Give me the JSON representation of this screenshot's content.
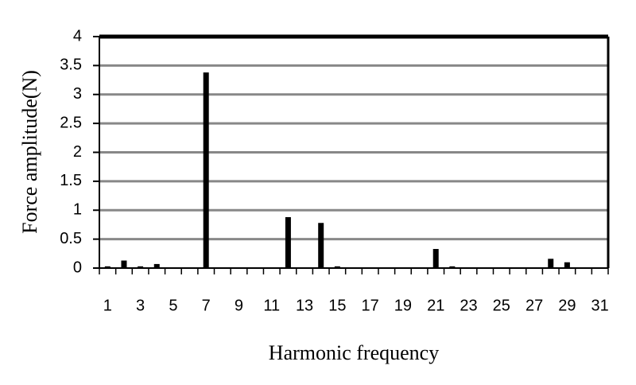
{
  "chart_data": {
    "type": "bar",
    "x_label": "Harmonic frequency",
    "y_label": "Force amplitude(N)",
    "categories": [
      "1",
      null,
      "3",
      null,
      "5",
      null,
      "7",
      null,
      "9",
      null,
      "11",
      null,
      "13",
      null,
      "15",
      null,
      "17",
      null,
      "19",
      null,
      "21",
      null,
      "23",
      null,
      "25",
      null,
      "27",
      null,
      "29",
      null,
      "31"
    ],
    "values": [
      0.03,
      0.13,
      0.03,
      0.07,
      0,
      0,
      3.38,
      0,
      0,
      0,
      0,
      0.88,
      0,
      0.78,
      0.03,
      0,
      0,
      0,
      0,
      0,
      0.33,
      0.03,
      0,
      0,
      0,
      0,
      0,
      0.16,
      0.1,
      0,
      0
    ],
    "color": "#000000",
    "ylim": [
      0,
      4
    ],
    "yticks": [
      0,
      0.5,
      1,
      1.5,
      2,
      2.5,
      3,
      3.5,
      4
    ],
    "grid": true
  }
}
